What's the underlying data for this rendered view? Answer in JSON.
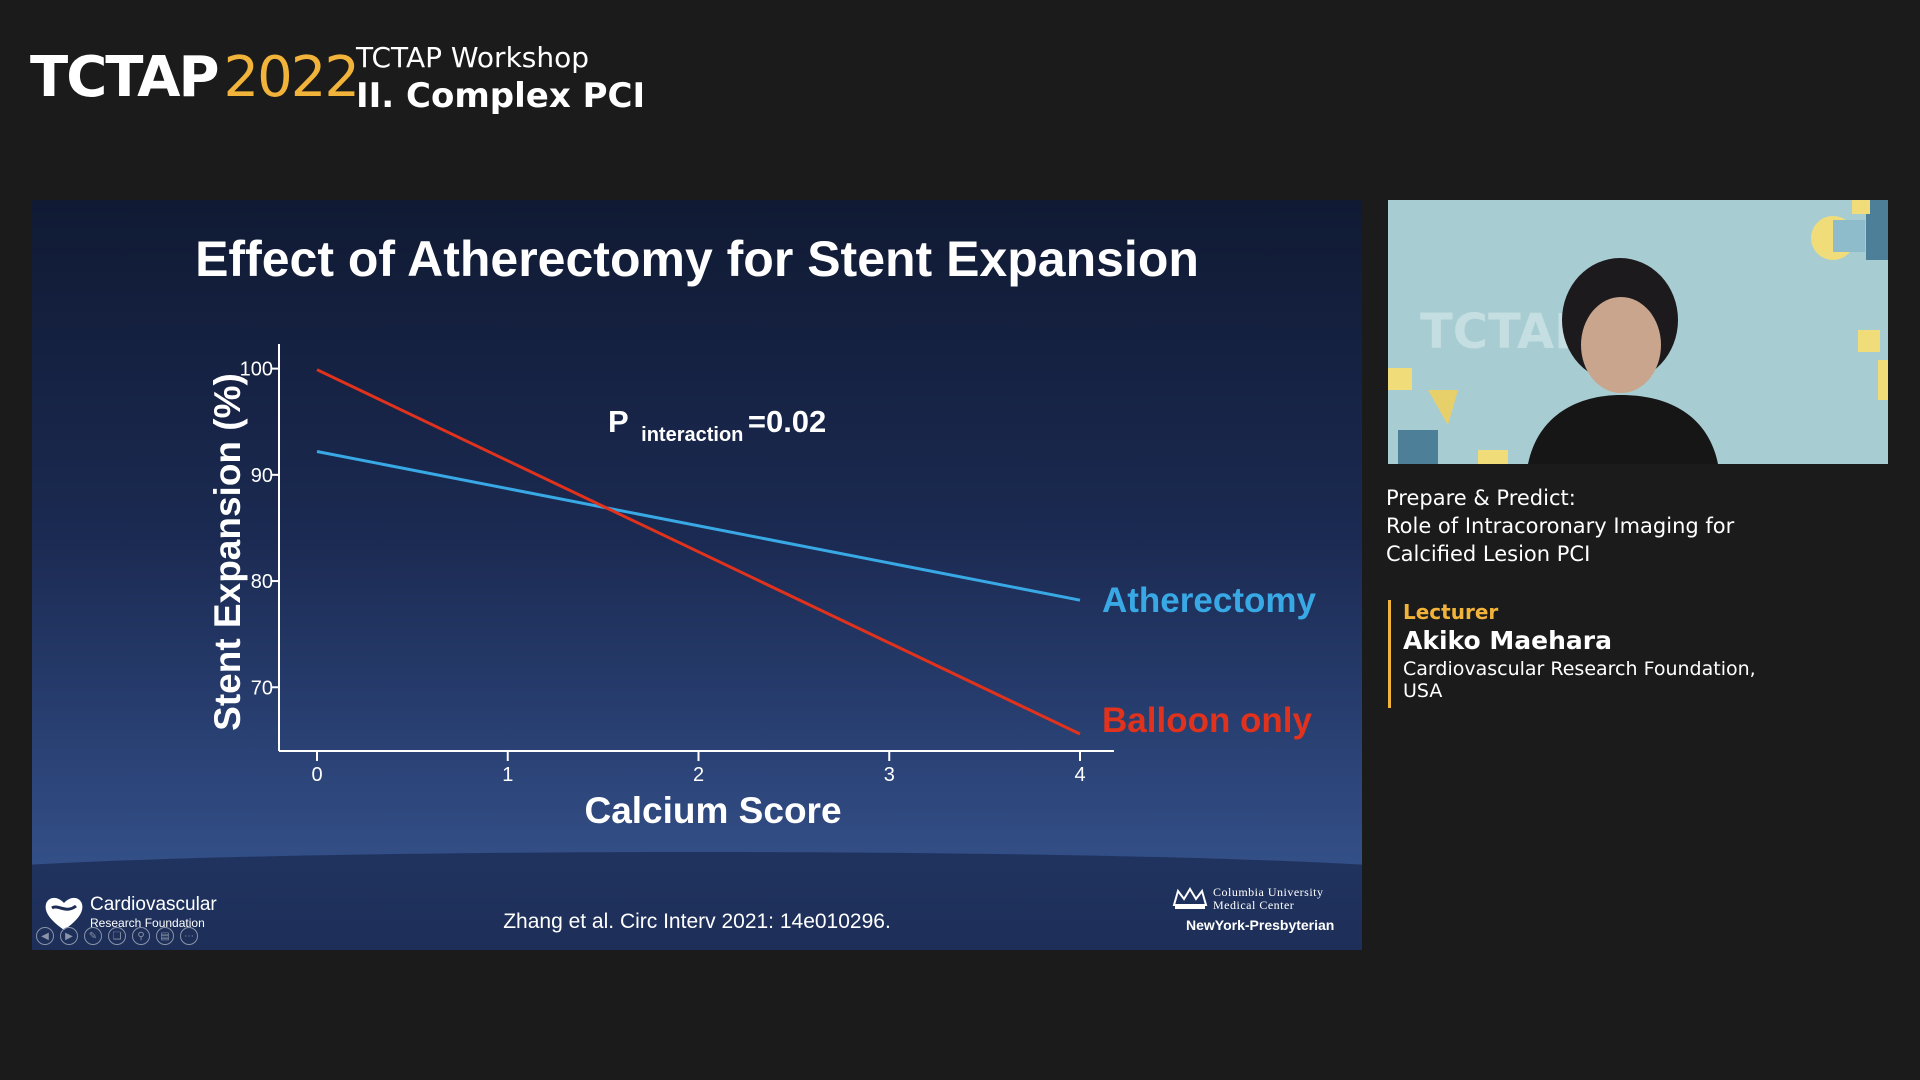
{
  "header": {
    "brand": "TCTAP",
    "year": "2022",
    "workshop_line1": "TCTAP Workshop",
    "workshop_line2": "II. Complex PCI"
  },
  "slide": {
    "title": "Effect of Atherectomy for Stent Expansion",
    "annotation_main": "P",
    "annotation_sub": "interaction",
    "annotation_value": "=0.02",
    "citation": "Zhang et al. Circ Interv 2021: 14e010296.",
    "logo_left_line1": "Cardiovascular",
    "logo_left_line2": "Research Foundation",
    "logo_right_line1": "Columbia University",
    "logo_right_line2": "Medical Center",
    "logo_right_line3": "NewYork-Presbyterian"
  },
  "chart_data": {
    "type": "line",
    "xlabel": "Calcium Score",
    "ylabel": "Stent Expansion (%)",
    "x_ticks": [
      "0",
      "1",
      "2",
      "3",
      "4"
    ],
    "y_ticks": [
      "70",
      "80",
      "90",
      "100"
    ],
    "xlim": [
      0,
      4
    ],
    "ylim": [
      64,
      101
    ],
    "grid": false,
    "legend": "inline-right",
    "series": [
      {
        "name": "Atherectomy",
        "color": "#39a9e6",
        "x": [
          0,
          4
        ],
        "y": [
          92.2,
          78.2
        ]
      },
      {
        "name": "Balloon only",
        "color": "#e0321c",
        "x": [
          0,
          4
        ],
        "y": [
          99.9,
          65.6
        ]
      }
    ]
  },
  "talk": {
    "title_line1": "Prepare & Predict:",
    "title_line2": "Role of Intracoronary Imaging for",
    "title_line3": "Calcified Lesion PCI",
    "lecturer_label": "Lecturer",
    "lecturer_name": "Akiko Maehara",
    "lecturer_affil_line1": "Cardiovascular Research Foundation,",
    "lecturer_affil_line2": "USA"
  },
  "video": {
    "watermark": "TCTAP"
  },
  "icons": [
    "crown-icon",
    "heart-logo-icon",
    "prev-icon",
    "next-icon",
    "pen-icon",
    "copy-icon",
    "zoom-icon",
    "subtitle-icon",
    "more-icon"
  ]
}
